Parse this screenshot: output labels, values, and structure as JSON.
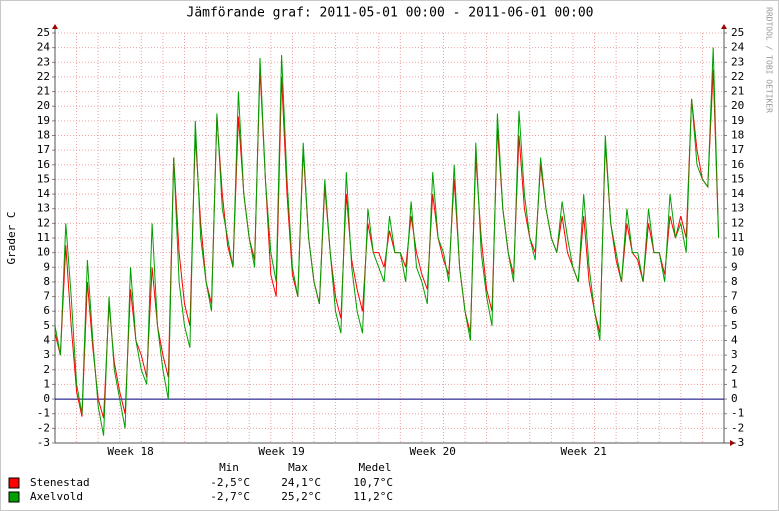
{
  "chart_data": {
    "type": "line",
    "title": "Jämförande graf: 2011-05-01 00:00 - 2011-06-01 00:00",
    "y_label": "Grader C",
    "side_note": "RRDTOOL / TOBI OETIKER",
    "categories": [
      null,
      null,
      null,
      null,
      null,
      null,
      null,
      null,
      null,
      null,
      null,
      null,
      null,
      null,
      "Week 18",
      null,
      null,
      null,
      null,
      null,
      null,
      null,
      null,
      null,
      null,
      null,
      null,
      null,
      null,
      null,
      null,
      null,
      null,
      null,
      null,
      null,
      null,
      null,
      null,
      null,
      null,
      null,
      "Week 19",
      null,
      null,
      null,
      null,
      null,
      null,
      null,
      null,
      null,
      null,
      null,
      null,
      null,
      null,
      null,
      null,
      null,
      null,
      null,
      null,
      null,
      null,
      null,
      null,
      null,
      null,
      null,
      "Week 20",
      null,
      null,
      null,
      null,
      null,
      null,
      null,
      null,
      null,
      null,
      null,
      null,
      null,
      null,
      null,
      null,
      null,
      null,
      null,
      null,
      null,
      null,
      null,
      null,
      null,
      null,
      null,
      "Week 21",
      null,
      null,
      null,
      null,
      null,
      null,
      null,
      null,
      null,
      null,
      null,
      null,
      null,
      null,
      null,
      null,
      null,
      null,
      null,
      null,
      null,
      null,
      null,
      null,
      null
    ],
    "series": [
      {
        "name": "Stenestad",
        "color": "#ff0000",
        "values": [
          4.5,
          3,
          10.5,
          5,
          0.5,
          -1.2,
          8,
          3.5,
          0,
          -1.3,
          6.5,
          2.5,
          0.5,
          -1,
          7.5,
          4,
          3,
          1.5,
          9,
          5,
          3,
          1.5,
          16.5,
          10,
          6.5,
          5,
          18,
          12,
          8,
          6.5,
          19.3,
          14,
          10.5,
          9,
          19.3,
          14,
          11,
          9.5,
          22.5,
          15,
          8.5,
          7,
          22,
          14,
          8.5,
          7,
          17,
          11,
          8,
          6.5,
          14.5,
          10,
          7,
          5.5,
          14,
          9.5,
          7.5,
          6,
          12,
          10,
          10,
          9,
          11.5,
          10,
          10,
          9,
          12.5,
          10,
          8.5,
          7.5,
          14,
          11,
          9.5,
          8.5,
          15,
          9,
          6,
          4.5,
          16.5,
          11,
          7.5,
          6,
          18.5,
          13,
          10,
          8.5,
          18,
          13,
          11,
          10,
          16,
          13,
          11,
          10,
          12.5,
          10,
          9,
          8,
          12.5,
          8,
          6,
          4.5,
          17.5,
          12,
          9.5,
          8,
          12,
          10,
          9.5,
          8,
          12,
          10,
          10,
          8.5,
          12.5,
          11,
          12.5,
          11,
          20.5,
          17,
          15,
          14.5,
          22.5,
          11
        ]
      },
      {
        "name": "Axelvold",
        "color": "#00a000",
        "values": [
          5,
          3,
          12,
          7,
          1,
          -1,
          9.5,
          4,
          -0.5,
          -2.5,
          7,
          2,
          0,
          -2,
          9,
          4,
          2,
          1,
          12,
          5,
          2,
          0,
          16.5,
          8,
          5,
          3.5,
          19,
          11,
          8,
          6,
          19.5,
          13,
          11,
          9,
          21,
          14,
          11,
          9,
          23.3,
          15,
          10,
          8,
          23.5,
          15,
          9,
          7,
          17.5,
          11,
          8,
          6.5,
          15,
          10,
          6,
          4.5,
          15.5,
          9,
          6,
          4.5,
          13,
          10,
          9,
          8,
          12.5,
          10,
          10,
          8,
          13.5,
          9,
          8,
          6.5,
          15.5,
          11,
          10,
          8,
          16,
          9,
          6,
          4,
          17.5,
          10,
          7,
          5,
          19.5,
          13,
          10,
          8,
          19.7,
          14,
          11,
          9.5,
          16.5,
          13,
          11,
          10,
          13.5,
          11,
          9,
          8,
          14,
          9,
          6,
          4,
          18,
          12,
          10,
          8,
          13,
          10,
          10,
          8,
          13,
          10,
          10,
          8,
          14,
          11,
          12,
          10,
          20.5,
          16,
          15,
          14.5,
          24,
          11
        ]
      }
    ],
    "ylim": [
      -3,
      25
    ],
    "yticks": [
      -3,
      -2,
      -1,
      0,
      1,
      2,
      3,
      4,
      5,
      6,
      7,
      8,
      9,
      10,
      11,
      12,
      13,
      14,
      15,
      16,
      17,
      18,
      19,
      20,
      21,
      22,
      23,
      24,
      25
    ],
    "grid": true,
    "legend_stats": {
      "headers": [
        "Min",
        "Max",
        "Medel"
      ],
      "rows": [
        [
          "-2,5°C",
          "24,1°C",
          "10,7°C"
        ],
        [
          "-2,7°C",
          "25,2°C",
          "11,2°C"
        ]
      ]
    }
  }
}
